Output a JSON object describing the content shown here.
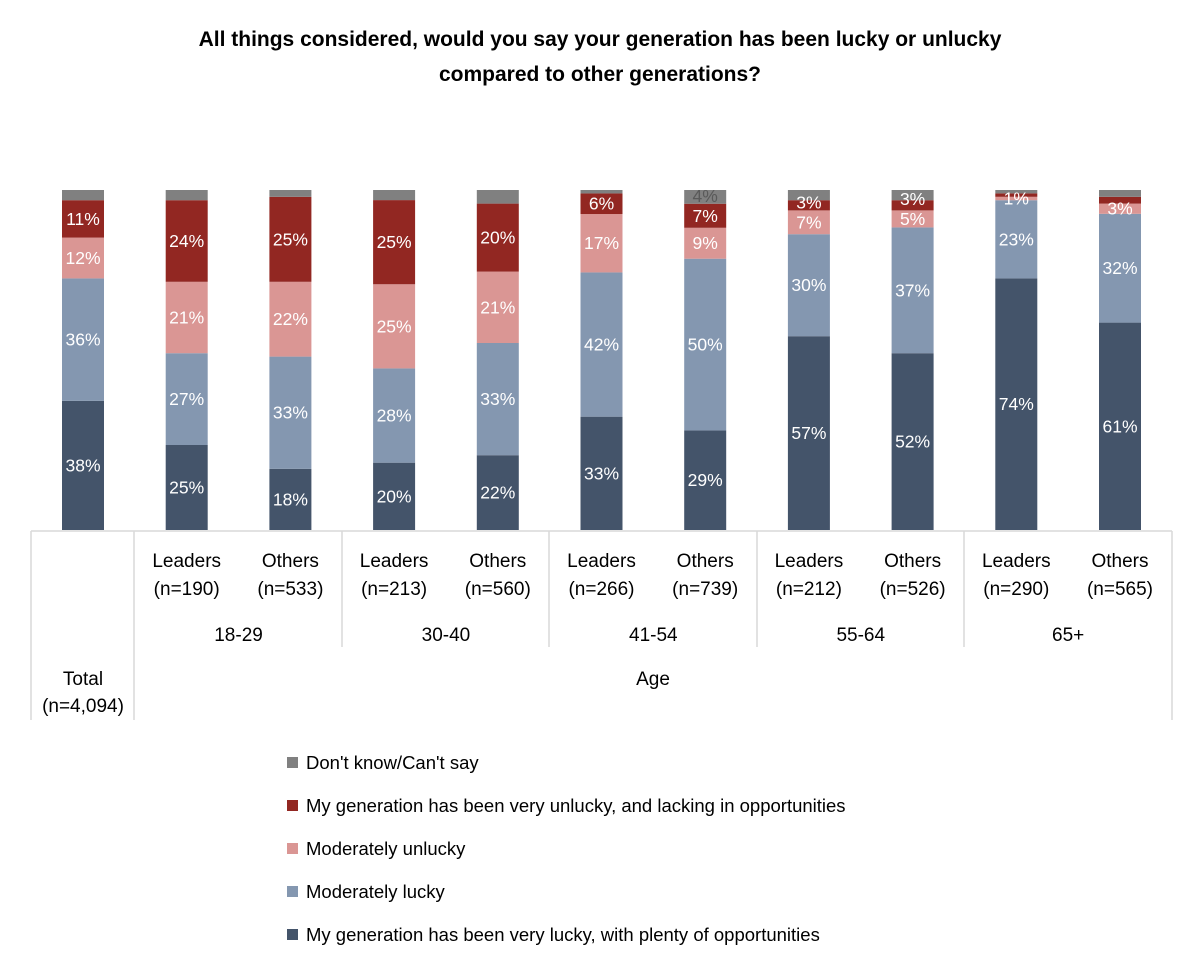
{
  "chart_data": {
    "type": "bar",
    "stacked": true,
    "title": [
      "All things considered, would you say your generation has been lucky or unlucky",
      "compared to other generations?"
    ],
    "ylim": [
      0,
      100
    ],
    "grid": false,
    "legend_position": "bottom",
    "categories": [
      {
        "label": [
          "",
          ""
        ],
        "group": "total"
      },
      {
        "label": [
          "Leaders",
          "(n=190)"
        ],
        "group": "18-29"
      },
      {
        "label": [
          "Others",
          "(n=533)"
        ],
        "group": "18-29"
      },
      {
        "label": [
          "Leaders",
          "(n=213)"
        ],
        "group": "30-40"
      },
      {
        "label": [
          "Others",
          "(n=560)"
        ],
        "group": "30-40"
      },
      {
        "label": [
          "Leaders",
          "(n=266)"
        ],
        "group": "41-54"
      },
      {
        "label": [
          "Others",
          "(n=739)"
        ],
        "group": "41-54"
      },
      {
        "label": [
          "Leaders",
          "(n=212)"
        ],
        "group": "55-64"
      },
      {
        "label": [
          "Others",
          "(n=526)"
        ],
        "group": "55-64"
      },
      {
        "label": [
          "Leaders",
          "(n=290)"
        ],
        "group": "65+"
      },
      {
        "label": [
          "Others",
          "(n=565)"
        ],
        "group": "65+"
      }
    ],
    "groups": [
      "18-29",
      "30-40",
      "41-54",
      "55-64",
      "65+"
    ],
    "total_label": [
      "Total",
      "(n=4,094)"
    ],
    "outer_group_label": "Age",
    "series": [
      {
        "name": "My generation has been very lucky, with plenty of opportunities",
        "color": "#44546a",
        "values": [
          38,
          25,
          18,
          20,
          22,
          33,
          29,
          57,
          52,
          74,
          61
        ],
        "labels": [
          "38%",
          "25%",
          "18%",
          "20%",
          "22%",
          "33%",
          "29%",
          "57%",
          "52%",
          "74%",
          "61%"
        ]
      },
      {
        "name": "Moderately lucky",
        "color": "#8497b0",
        "values": [
          36,
          27,
          33,
          28,
          33,
          42,
          50,
          30,
          37,
          23,
          32
        ],
        "labels": [
          "36%",
          "27%",
          "33%",
          "28%",
          "33%",
          "42%",
          "50%",
          "30%",
          "37%",
          "23%",
          "32%"
        ]
      },
      {
        "name": "Moderately unlucky",
        "color": "#da9694",
        "values": [
          12,
          21,
          22,
          25,
          21,
          17,
          9,
          7,
          5,
          1,
          3
        ],
        "labels": [
          "12%",
          "21%",
          "22%",
          "25%",
          "21%",
          "17%",
          "9%",
          "7%",
          "5%",
          "1%",
          "3%"
        ]
      },
      {
        "name": "My generation has been very unlucky, and lacking in opportunities",
        "color": "#922722",
        "values": [
          11,
          24,
          25,
          25,
          20,
          6,
          7,
          3,
          3,
          1,
          2
        ],
        "labels": [
          "11%",
          "24%",
          "25%",
          "25%",
          "20%",
          "6%",
          "7%",
          "3%",
          "3%",
          "",
          ""
        ]
      },
      {
        "name": "Don't know/Can't say",
        "color": "#808080",
        "values": [
          3,
          3,
          2,
          3,
          4,
          1,
          4,
          3,
          3,
          1,
          2
        ],
        "labels": [
          "",
          "",
          "",
          "",
          "",
          "",
          "4%",
          "",
          "",
          "",
          ""
        ]
      }
    ],
    "legend_order": [
      4,
      3,
      2,
      1,
      0
    ]
  }
}
